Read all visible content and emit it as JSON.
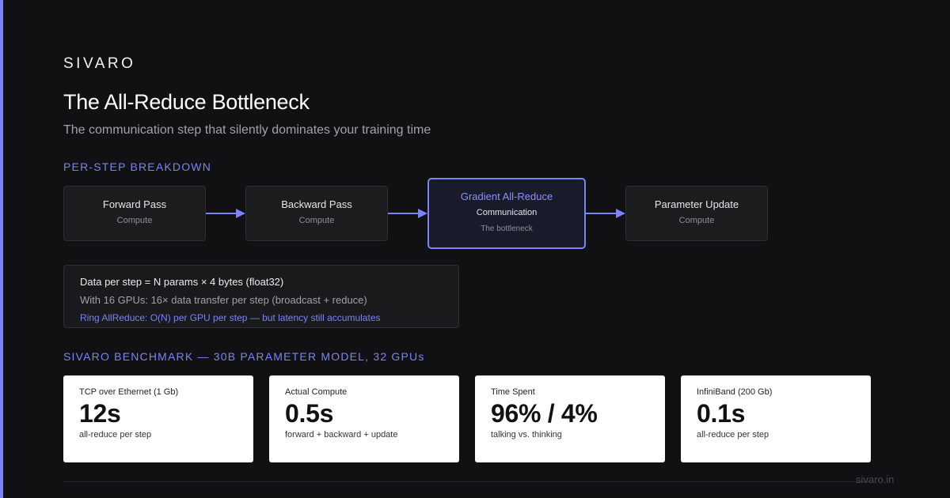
{
  "brand": "SIVARO",
  "title": "The All-Reduce Bottleneck",
  "subtitle": "The communication step that silently dominates your training time",
  "breakdown": {
    "label": "PER-STEP BREAKDOWN",
    "steps": [
      {
        "name": "Forward Pass",
        "kind": "Compute"
      },
      {
        "name": "Backward Pass",
        "kind": "Compute"
      },
      {
        "name": "Gradient All-Reduce",
        "kind": "Communication",
        "note": "The bottleneck"
      },
      {
        "name": "Parameter Update",
        "kind": "Compute"
      }
    ]
  },
  "info": {
    "line1": "Data per step = N params × 4 bytes (float32)",
    "line2": "With 16 GPUs: 16× data transfer per step (broadcast + reduce)",
    "line3": "Ring AllReduce: O(N) per GPU per step — but latency still accumulates"
  },
  "benchmark": {
    "label": "SIVARO BENCHMARK — 30B PARAMETER MODEL, 32 GPUs",
    "cards": [
      {
        "label": "TCP over Ethernet (1 Gb)",
        "value": "12s",
        "sub": "all-reduce per step"
      },
      {
        "label": "Actual Compute",
        "value": "0.5s",
        "sub": "forward + backward + update"
      },
      {
        "label": "Time Spent",
        "value": "96% / 4%",
        "sub": "talking vs. thinking"
      },
      {
        "label": "InfiniBand (200 Gb)",
        "value": "0.1s",
        "sub": "all-reduce per step"
      }
    ]
  },
  "footer": "sivaro.in",
  "colors": {
    "accent": "#7c83f5",
    "background": "#111113",
    "card": "#ffffff"
  }
}
